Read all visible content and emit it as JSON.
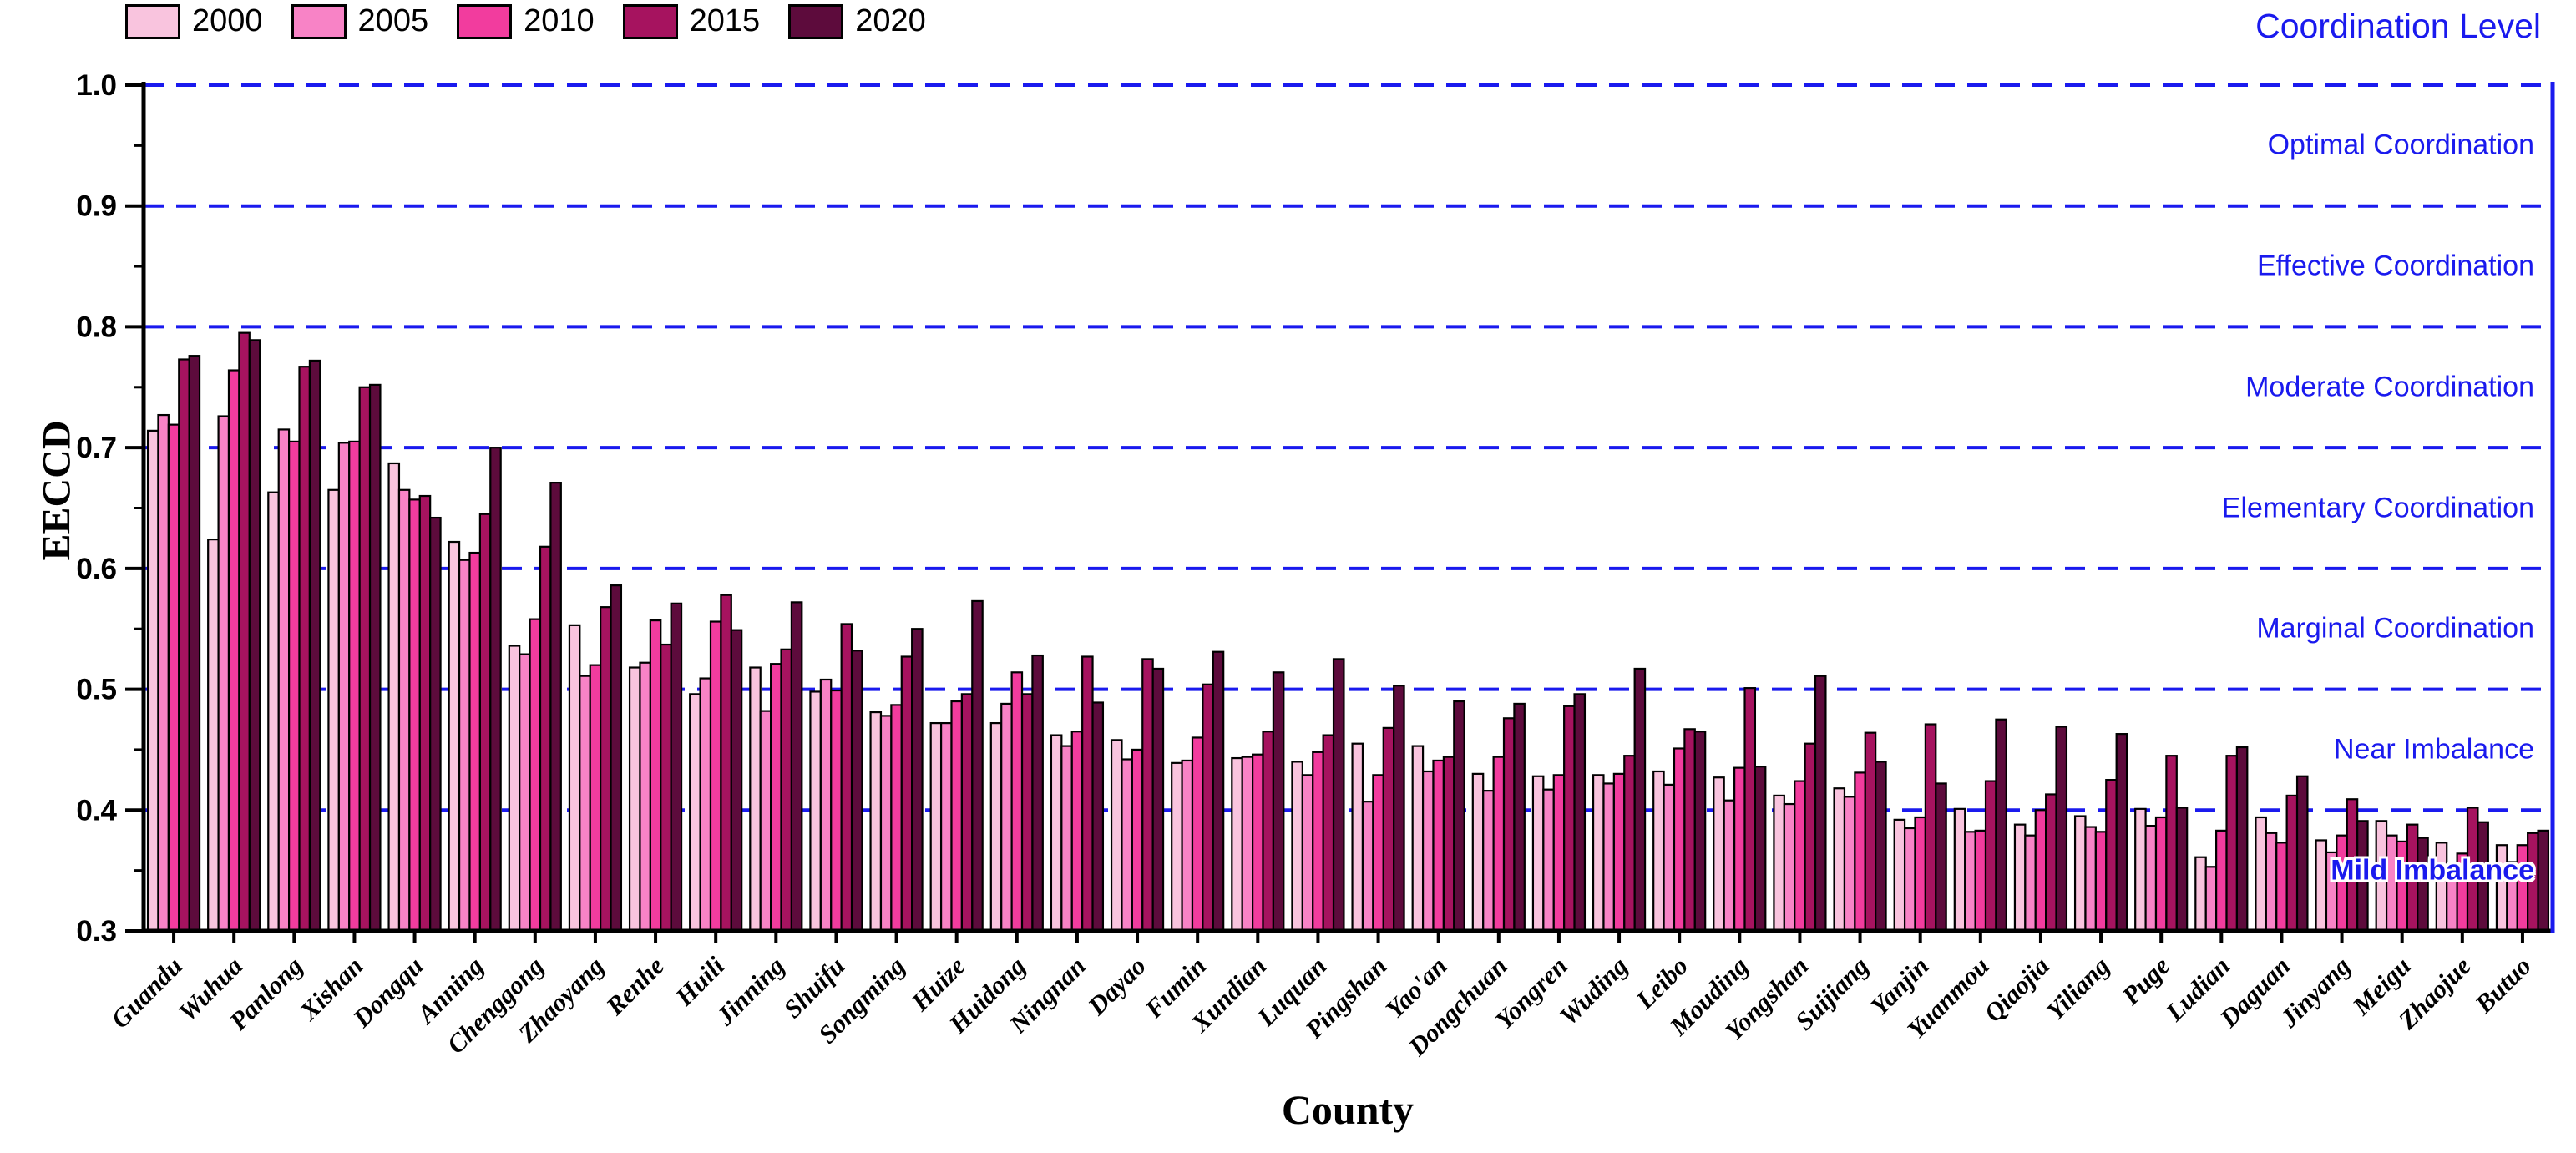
{
  "figure": {
    "right_title": "Coordination Level",
    "zone_labels": [
      {
        "label": "Optimal Coordination",
        "mid": 0.95,
        "halo": false
      },
      {
        "label": "Effective Coordination",
        "mid": 0.85,
        "halo": false
      },
      {
        "label": "Moderate Coordination",
        "mid": 0.75,
        "halo": false
      },
      {
        "label": "Elementary Coordination",
        "mid": 0.65,
        "halo": false
      },
      {
        "label": "Marginal Coordination",
        "mid": 0.55,
        "halo": false
      },
      {
        "label": "Near Imbalance",
        "mid": 0.45,
        "halo": false
      },
      {
        "label": "Mild Imbalance",
        "mid": 0.35,
        "halo": true
      }
    ],
    "colors": {
      "blue": "#1a1aee",
      "axis_black": "#000000",
      "bar_border": "#000000",
      "background": "#ffffff"
    }
  },
  "chart_data": {
    "type": "bar",
    "title": "",
    "xlabel": "County",
    "ylabel": "EECCD",
    "ylim": [
      0.3,
      1.0
    ],
    "y_ticks": [
      1.0,
      0.9,
      0.8,
      0.7,
      0.6,
      0.5,
      0.4,
      0.3
    ],
    "gridlines": {
      "values": [
        1.0,
        0.9,
        0.8,
        0.7,
        0.6,
        0.5,
        0.4
      ],
      "style": "dashed",
      "color": "#1a1aee"
    },
    "grid": true,
    "legend_position": "top-left",
    "categories": [
      "Guandu",
      "Wuhua",
      "Panlong",
      "Xishan",
      "Dongqu",
      "Anning",
      "Chenggong",
      "Zhaoyang",
      "Renhe",
      "Huili",
      "Jinning",
      "Shuifu",
      "Songming",
      "Huize",
      "Huidong",
      "Ningnan",
      "Dayao",
      "Fumin",
      "Xundian",
      "Luquan",
      "Pingshan",
      "Yao'an",
      "Dongchuan",
      "Yongren",
      "Wuding",
      "Leibo",
      "Mouding",
      "Yongshan",
      "Suijiang",
      "Yanjin",
      "Yuanmou",
      "Qiaojia",
      "Yiliang",
      "Puge",
      "Ludian",
      "Daguan",
      "Jinyang",
      "Meigu",
      "Zhaojue",
      "Butuo"
    ],
    "series": [
      {
        "name": "2000",
        "color": "#f9c4de",
        "values": [
          0.714,
          0.624,
          0.663,
          0.665,
          0.687,
          0.622,
          0.536,
          0.553,
          0.518,
          0.496,
          0.518,
          0.498,
          0.481,
          0.472,
          0.472,
          0.462,
          0.458,
          0.439,
          0.443,
          0.44,
          0.455,
          0.453,
          0.43,
          0.428,
          0.429,
          0.432,
          0.427,
          0.412,
          0.418,
          0.392,
          0.401,
          0.388,
          0.395,
          0.401,
          0.361,
          0.394,
          0.375,
          0.391,
          0.373,
          0.371
        ]
      },
      {
        "name": "2005",
        "color": "#f883c6",
        "values": [
          0.727,
          0.726,
          0.715,
          0.704,
          0.665,
          0.607,
          0.529,
          0.511,
          0.522,
          0.509,
          0.482,
          0.508,
          0.478,
          0.472,
          0.488,
          0.453,
          0.442,
          0.441,
          0.444,
          0.429,
          0.407,
          0.432,
          0.416,
          0.417,
          0.422,
          0.421,
          0.408,
          0.405,
          0.411,
          0.385,
          0.382,
          0.379,
          0.386,
          0.387,
          0.353,
          0.381,
          0.365,
          0.379,
          0.353,
          0.357
        ]
      },
      {
        "name": "2010",
        "color": "#f23c9e",
        "values": [
          0.719,
          0.764,
          0.705,
          0.705,
          0.657,
          0.613,
          0.558,
          0.52,
          0.557,
          0.556,
          0.521,
          0.499,
          0.487,
          0.49,
          0.514,
          0.465,
          0.45,
          0.46,
          0.446,
          0.448,
          0.429,
          0.441,
          0.444,
          0.429,
          0.43,
          0.451,
          0.435,
          0.424,
          0.431,
          0.394,
          0.383,
          0.4,
          0.382,
          0.394,
          0.383,
          0.373,
          0.379,
          0.374,
          0.364,
          0.371
        ]
      },
      {
        "name": "2015",
        "color": "#a6135f",
        "values": [
          0.773,
          0.795,
          0.767,
          0.75,
          0.66,
          0.645,
          0.618,
          0.568,
          0.537,
          0.578,
          0.533,
          0.554,
          0.527,
          0.496,
          0.496,
          0.527,
          0.525,
          0.504,
          0.465,
          0.462,
          0.468,
          0.444,
          0.476,
          0.486,
          0.445,
          0.467,
          0.501,
          0.455,
          0.464,
          0.471,
          0.424,
          0.413,
          0.425,
          0.445,
          0.445,
          0.412,
          0.409,
          0.388,
          0.402,
          0.381
        ]
      },
      {
        "name": "2020",
        "color": "#5d0b3c",
        "values": [
          0.776,
          0.789,
          0.772,
          0.752,
          0.642,
          0.7,
          0.671,
          0.586,
          0.571,
          0.549,
          0.572,
          0.532,
          0.55,
          0.573,
          0.528,
          0.489,
          0.517,
          0.531,
          0.514,
          0.525,
          0.503,
          0.49,
          0.488,
          0.496,
          0.517,
          0.465,
          0.436,
          0.511,
          0.44,
          0.422,
          0.475,
          0.469,
          0.463,
          0.402,
          0.452,
          0.428,
          0.391,
          0.377,
          0.39,
          0.383
        ]
      }
    ]
  }
}
